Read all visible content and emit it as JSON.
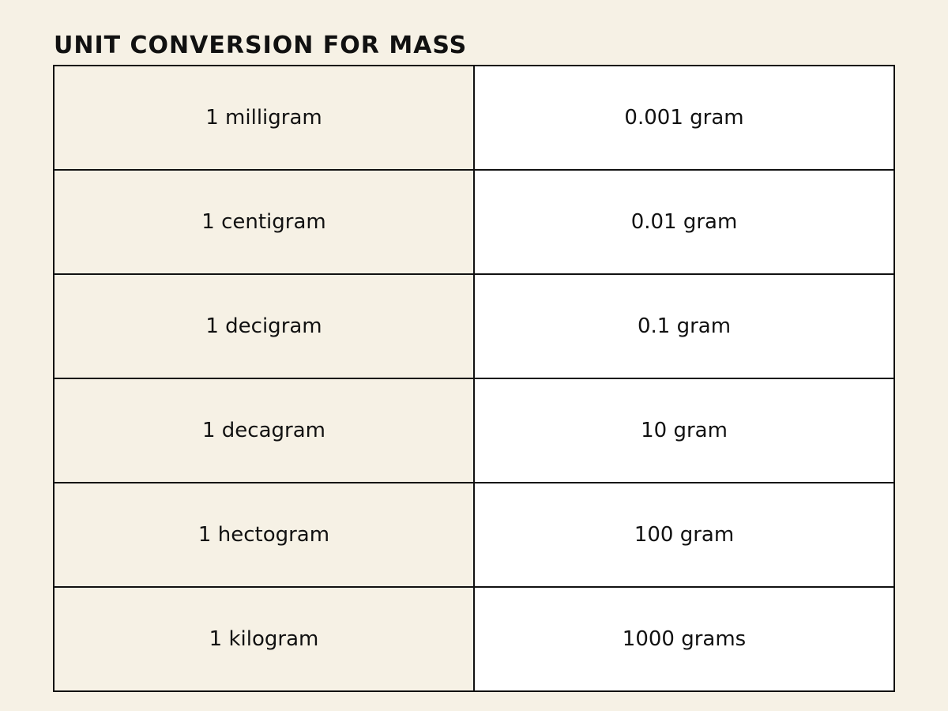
{
  "title": "UNIT CONVERSION FOR MASS",
  "table": {
    "rows": [
      [
        "1 milligram",
        "0.001 gram"
      ],
      [
        "1 centigram",
        "0.01 gram"
      ],
      [
        "1 decigram",
        "0.1 gram"
      ],
      [
        "1 decagram",
        "10 gram"
      ],
      [
        "1 hectogram",
        "100 gram"
      ],
      [
        "1 kilogram",
        "1000 grams"
      ]
    ]
  }
}
